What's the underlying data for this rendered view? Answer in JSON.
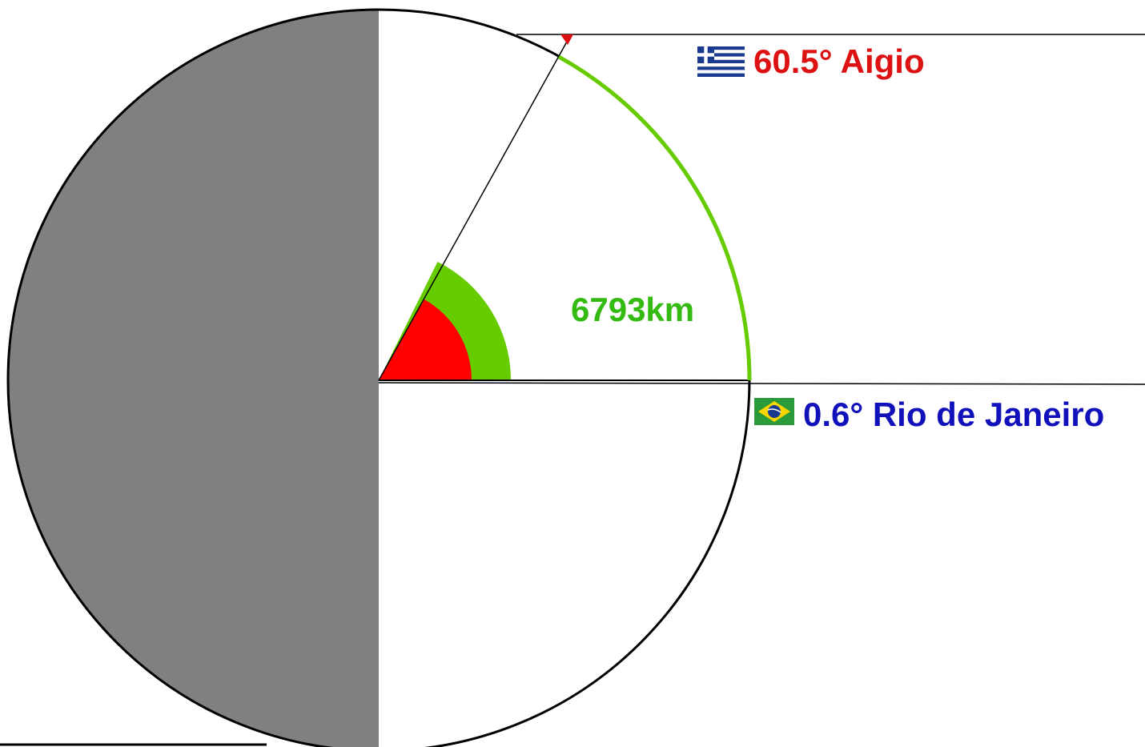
{
  "diagram": {
    "top_caption_partial": "",
    "aigio_label": "60.5° Aigio",
    "rio_label": "0.6° Rio de Janeiro",
    "arc_distance_label": "6793km"
  },
  "colors": {
    "shadow": "#808080",
    "circle_outline": "#000000",
    "arc": "#66cc00",
    "aigio_angle_fill": "#ff0000",
    "distance_angle_fill": "#66cc00",
    "aigio_text": "#dd1111",
    "rio_text": "#1111bb",
    "distance_text": "#33bb11",
    "greece_flag_blue": "#1a3a8f",
    "brazil_flag_green": "#2a9a3a",
    "brazil_flag_yellow": "#f6d600",
    "brazil_flag_blue": "#1a3a8f"
  },
  "icons": {
    "greece_flag": "greece-flag-icon",
    "brazil_flag": "brazil-flag-icon"
  }
}
